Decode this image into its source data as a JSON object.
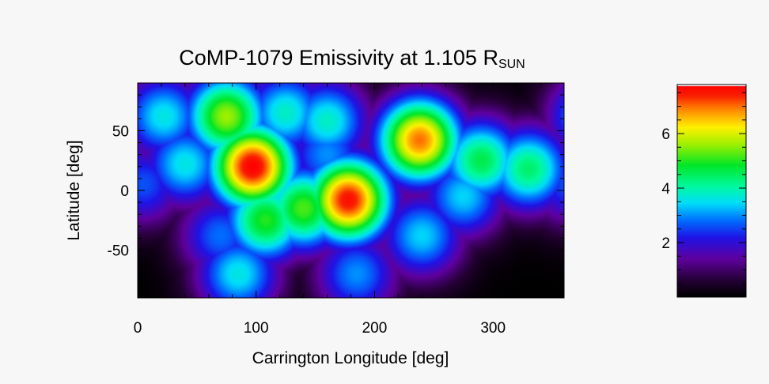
{
  "chart_data": {
    "type": "heatmap",
    "title_main": "CoMP-1079 Emissivity at 1.105 R",
    "title_sub": "SUN",
    "xlabel": "Carrington Longitude [deg]",
    "ylabel": "Latitude [deg]",
    "xlim": [
      0,
      360
    ],
    "ylim": [
      -90,
      90
    ],
    "x_ticks": [
      0,
      100,
      200,
      300
    ],
    "y_ticks": [
      -50,
      0,
      50
    ],
    "colorbar": {
      "range": [
        0,
        7.8
      ],
      "ticks": [
        2,
        4,
        6
      ],
      "colormap": "rainbow"
    },
    "blobs": [
      {
        "lon": 97,
        "lat": 20,
        "value": 7.8
      },
      {
        "lon": 178,
        "lat": -8,
        "value": 7.6
      },
      {
        "lon": 238,
        "lat": 42,
        "value": 7.0
      },
      {
        "lon": 75,
        "lat": 62,
        "value": 5.6
      },
      {
        "lon": 22,
        "lat": 62,
        "value": 3.6
      },
      {
        "lon": 40,
        "lat": 22,
        "value": 3.6
      },
      {
        "lon": 125,
        "lat": 65,
        "value": 3.8
      },
      {
        "lon": 160,
        "lat": 58,
        "value": 3.8
      },
      {
        "lon": 140,
        "lat": -15,
        "value": 5.2
      },
      {
        "lon": 108,
        "lat": -25,
        "value": 5.0
      },
      {
        "lon": 290,
        "lat": 25,
        "value": 4.6
      },
      {
        "lon": 330,
        "lat": 18,
        "value": 4.4
      },
      {
        "lon": 275,
        "lat": -5,
        "value": 3.4
      },
      {
        "lon": 240,
        "lat": -38,
        "value": 3.4
      },
      {
        "lon": 185,
        "lat": -70,
        "value": 3.0
      },
      {
        "lon": 85,
        "lat": -70,
        "value": 3.6
      },
      {
        "lon": 70,
        "lat": -38,
        "value": 2.8
      },
      {
        "lon": 160,
        "lat": 30,
        "value": 3.0
      },
      {
        "lon": 5,
        "lat": 5,
        "value": 2.6
      }
    ]
  }
}
